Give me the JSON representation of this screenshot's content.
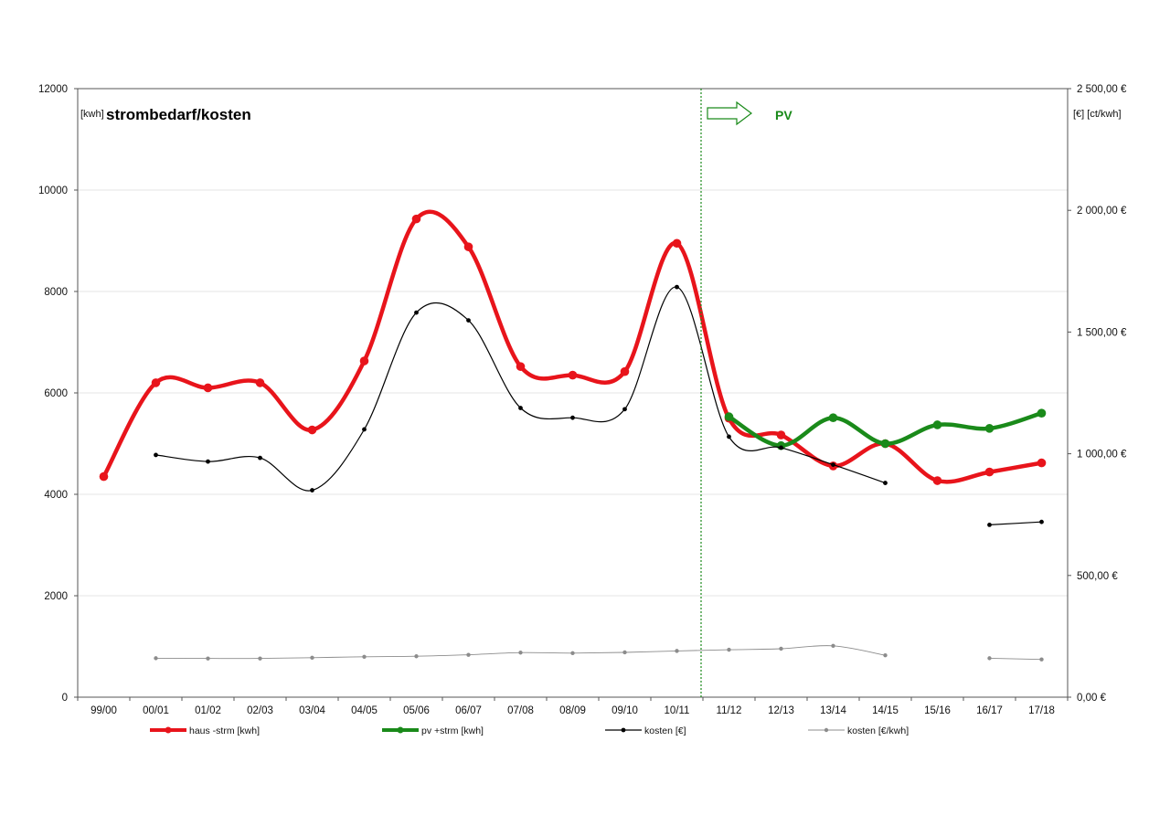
{
  "chart_data": {
    "type": "line",
    "title": "strombedarf/kosten",
    "ylabel_left": "[kwh]",
    "ylabel_right": "[€] [ct/kwh]",
    "annotation": "PV",
    "categories": [
      "99/00",
      "00/01",
      "01/02",
      "02/03",
      "03/04",
      "04/05",
      "05/06",
      "06/07",
      "07/08",
      "08/09",
      "09/10",
      "10/11",
      "11/12",
      "12/13",
      "13/14",
      "14/15",
      "15/16",
      "16/17",
      "17/18"
    ],
    "ylim_left": [
      0,
      12000
    ],
    "yticks_left": [
      0,
      2000,
      4000,
      6000,
      8000,
      10000,
      12000
    ],
    "ylim_right": [
      0,
      2500
    ],
    "yticks_right_labels": [
      "0,00 €",
      "500,00 €",
      "1 000,00 €",
      "1 500,00 €",
      "2 000,00 €",
      "2 500,00 €"
    ],
    "grid": "horizontal",
    "legend_position": "bottom",
    "series": [
      {
        "name": "haus -strm [kwh]",
        "axis": "left",
        "color": "#e8141b",
        "values": [
          4350,
          6200,
          6100,
          6200,
          5270,
          6630,
          9430,
          8880,
          6520,
          6350,
          6420,
          8950,
          5500,
          5170,
          4560,
          5000,
          4270,
          4440,
          4620
        ]
      },
      {
        "name": "pv +strm [kwh]",
        "axis": "left",
        "color": "#1a8a1a",
        "values": [
          null,
          null,
          null,
          null,
          null,
          null,
          null,
          null,
          null,
          null,
          null,
          null,
          5530,
          4960,
          5510,
          5000,
          5370,
          5300,
          5600
        ]
      },
      {
        "name": "kosten [€]",
        "axis": "right",
        "color": "#000000",
        "values": [
          null,
          995,
          968,
          983,
          850,
          1100,
          1580,
          1548,
          1188,
          1148,
          1183,
          1685,
          1070,
          1025,
          955,
          880,
          null,
          708,
          720
        ]
      },
      {
        "name": "kosten [€/kwh]",
        "axis": "right",
        "color": "#8c8c8c",
        "values": [
          null,
          160,
          159,
          159,
          162,
          166,
          168,
          174,
          183,
          181,
          184,
          190,
          195,
          199,
          211,
          172,
          null,
          160,
          155
        ]
      }
    ]
  },
  "colors": {
    "grid": "#e4e4e4",
    "pv_marker": "#1a8a1a"
  }
}
